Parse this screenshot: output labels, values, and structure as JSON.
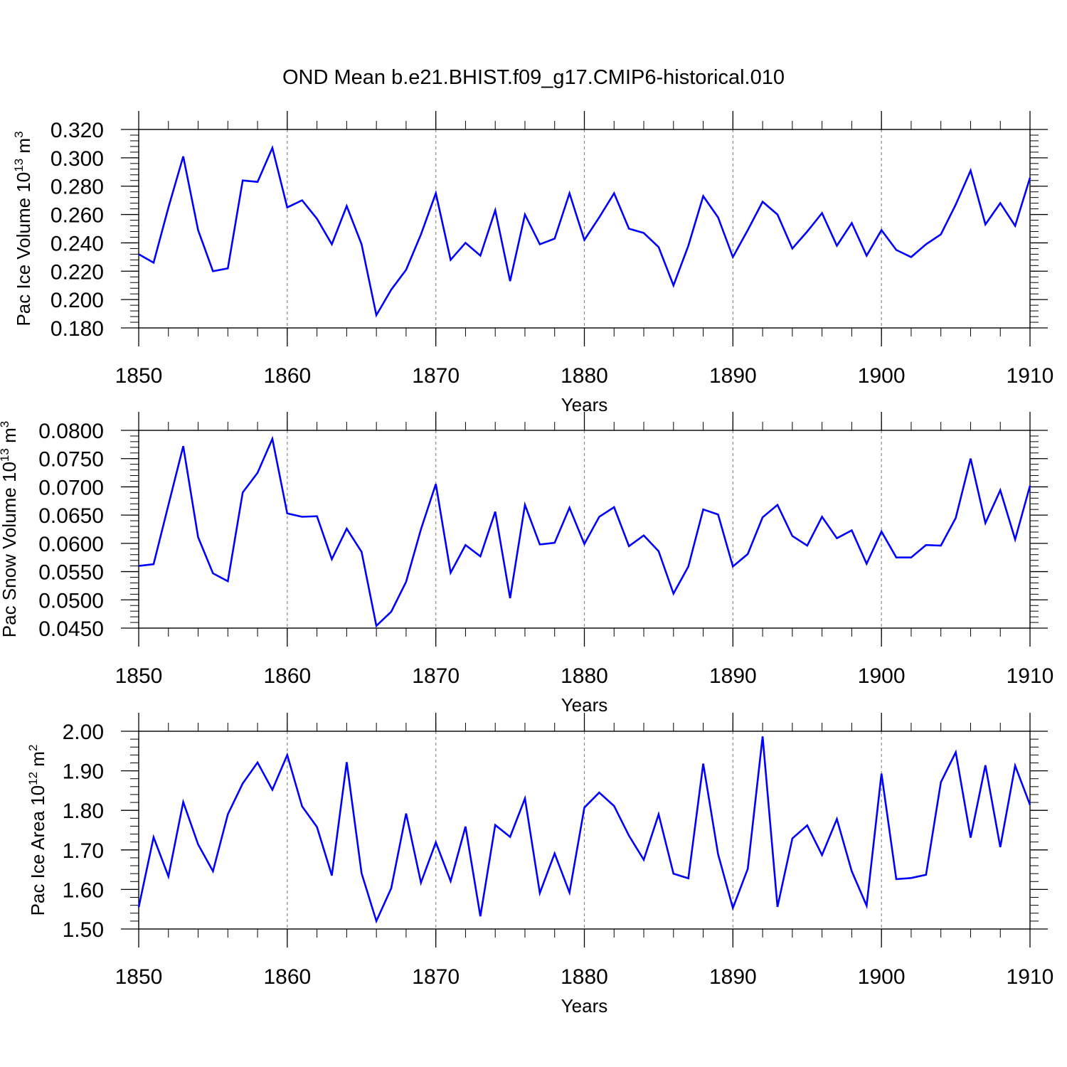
{
  "title": "OND Mean b.e21.BHIST.f09_g17.CMIP6-historical.010",
  "line_color": "#0000ff",
  "gridline_color": "#888888",
  "chart_data": [
    {
      "type": "line",
      "ylabel": "Pac Ice Volume 10",
      "ylabel_exp": "13",
      "ylabel_unit": "m",
      "ylabel_unit_exp": "3",
      "xlabel": "Years",
      "xlim": [
        1850,
        1910
      ],
      "ylim": [
        0.18,
        0.32
      ],
      "yticks": [
        0.18,
        0.2,
        0.22,
        0.24,
        0.26,
        0.28,
        0.3,
        0.32
      ],
      "ytick_labels": [
        "0.180",
        "0.200",
        "0.220",
        "0.240",
        "0.260",
        "0.280",
        "0.300",
        "0.320"
      ],
      "yminor_step": 0.004,
      "xticks": [
        1850,
        1860,
        1870,
        1880,
        1890,
        1900,
        1910
      ],
      "xtick_labels": [
        "1850",
        "1860",
        "1870",
        "1880",
        "1890",
        "1900",
        "1910"
      ],
      "x": [
        1850,
        1851,
        1852,
        1853,
        1854,
        1855,
        1856,
        1857,
        1858,
        1859,
        1860,
        1861,
        1862,
        1863,
        1864,
        1865,
        1866,
        1867,
        1868,
        1869,
        1870,
        1871,
        1872,
        1873,
        1874,
        1875,
        1876,
        1877,
        1878,
        1879,
        1880,
        1881,
        1882,
        1883,
        1884,
        1885,
        1886,
        1887,
        1888,
        1889,
        1890,
        1891,
        1892,
        1893,
        1894,
        1895,
        1896,
        1897,
        1898,
        1899,
        1900,
        1901,
        1902,
        1903,
        1904,
        1905,
        1906,
        1907,
        1908,
        1909,
        1910
      ],
      "values": [
        0.232,
        0.226,
        0.265,
        0.301,
        0.249,
        0.22,
        0.222,
        0.284,
        0.283,
        0.307,
        0.265,
        0.27,
        0.257,
        0.239,
        0.266,
        0.239,
        0.189,
        0.207,
        0.221,
        0.246,
        0.275,
        0.228,
        0.24,
        0.231,
        0.263,
        0.213,
        0.26,
        0.239,
        0.243,
        0.275,
        0.242,
        0.258,
        0.275,
        0.25,
        0.247,
        0.237,
        0.21,
        0.238,
        0.273,
        0.258,
        0.23,
        0.249,
        0.269,
        0.26,
        0.236,
        0.248,
        0.261,
        0.238,
        0.254,
        0.231,
        0.249,
        0.235,
        0.23,
        0.239,
        0.246,
        0.267,
        0.291,
        0.253,
        0.268,
        0.252,
        0.286
      ]
    },
    {
      "type": "line",
      "ylabel": "Pac Snow Volume 10",
      "ylabel_exp": "13",
      "ylabel_unit": "m",
      "ylabel_unit_exp": "3",
      "xlabel": "Years",
      "xlim": [
        1850,
        1910
      ],
      "ylim": [
        0.045,
        0.08
      ],
      "yticks": [
        0.045,
        0.05,
        0.055,
        0.06,
        0.065,
        0.07,
        0.075,
        0.08
      ],
      "ytick_labels": [
        "0.0450",
        "0.0500",
        "0.0550",
        "0.0600",
        "0.0650",
        "0.0700",
        "0.0750",
        "0.0800"
      ],
      "yminor_step": 0.001,
      "xticks": [
        1850,
        1860,
        1870,
        1880,
        1890,
        1900,
        1910
      ],
      "xtick_labels": [
        "1850",
        "1860",
        "1870",
        "1880",
        "1890",
        "1900",
        "1910"
      ],
      "x": [
        1850,
        1851,
        1852,
        1853,
        1854,
        1855,
        1856,
        1857,
        1858,
        1859,
        1860,
        1861,
        1862,
        1863,
        1864,
        1865,
        1866,
        1867,
        1868,
        1869,
        1870,
        1871,
        1872,
        1873,
        1874,
        1875,
        1876,
        1877,
        1878,
        1879,
        1880,
        1881,
        1882,
        1883,
        1884,
        1885,
        1886,
        1887,
        1888,
        1889,
        1890,
        1891,
        1892,
        1893,
        1894,
        1895,
        1896,
        1897,
        1898,
        1899,
        1900,
        1901,
        1902,
        1903,
        1904,
        1905,
        1906,
        1907,
        1908,
        1909,
        1910
      ],
      "values": [
        0.056,
        0.0563,
        0.0668,
        0.0772,
        0.0611,
        0.0547,
        0.0533,
        0.069,
        0.0725,
        0.0785,
        0.0653,
        0.0647,
        0.0648,
        0.0572,
        0.0626,
        0.0585,
        0.0454,
        0.0479,
        0.0532,
        0.0625,
        0.0705,
        0.0548,
        0.0597,
        0.0577,
        0.0656,
        0.0503,
        0.0668,
        0.0598,
        0.0601,
        0.0663,
        0.0599,
        0.0647,
        0.0664,
        0.0595,
        0.0614,
        0.0586,
        0.0511,
        0.0559,
        0.066,
        0.0651,
        0.0559,
        0.0581,
        0.0646,
        0.0668,
        0.0613,
        0.0596,
        0.0647,
        0.0609,
        0.0623,
        0.0564,
        0.0621,
        0.0575,
        0.0575,
        0.0597,
        0.0596,
        0.0645,
        0.075,
        0.0636,
        0.0694,
        0.0607,
        0.0702
      ]
    },
    {
      "type": "line",
      "ylabel": "Pac Ice Area 10",
      "ylabel_exp": "12",
      "ylabel_unit": "m",
      "ylabel_unit_exp": "2",
      "xlabel": "Years",
      "xlim": [
        1850,
        1910
      ],
      "ylim": [
        1.5,
        2.0
      ],
      "yticks": [
        1.5,
        1.6,
        1.7,
        1.8,
        1.9,
        2.0
      ],
      "ytick_labels": [
        "1.50",
        "1.60",
        "1.70",
        "1.80",
        "1.90",
        "2.00"
      ],
      "yminor_step": 0.02,
      "xticks": [
        1850,
        1860,
        1870,
        1880,
        1890,
        1900,
        1910
      ],
      "xtick_labels": [
        "1850",
        "1860",
        "1870",
        "1880",
        "1890",
        "1900",
        "1910"
      ],
      "x": [
        1850,
        1851,
        1852,
        1853,
        1854,
        1855,
        1856,
        1857,
        1858,
        1859,
        1860,
        1861,
        1862,
        1863,
        1864,
        1865,
        1866,
        1867,
        1868,
        1869,
        1870,
        1871,
        1872,
        1873,
        1874,
        1875,
        1876,
        1877,
        1878,
        1879,
        1880,
        1881,
        1882,
        1883,
        1884,
        1885,
        1886,
        1887,
        1888,
        1889,
        1890,
        1891,
        1892,
        1893,
        1894,
        1895,
        1896,
        1897,
        1898,
        1899,
        1900,
        1901,
        1902,
        1903,
        1904,
        1905,
        1906,
        1907,
        1908,
        1909,
        1910
      ],
      "values": [
        1.555,
        1.732,
        1.633,
        1.821,
        1.714,
        1.646,
        1.79,
        1.868,
        1.921,
        1.852,
        1.94,
        1.81,
        1.758,
        1.635,
        1.922,
        1.641,
        1.52,
        1.603,
        1.792,
        1.617,
        1.719,
        1.621,
        1.759,
        1.532,
        1.763,
        1.733,
        1.83,
        1.591,
        1.691,
        1.592,
        1.807,
        1.845,
        1.811,
        1.736,
        1.675,
        1.79,
        1.64,
        1.628,
        1.918,
        1.689,
        1.553,
        1.652,
        1.987,
        1.556,
        1.729,
        1.762,
        1.687,
        1.778,
        1.646,
        1.559,
        1.893,
        1.626,
        1.629,
        1.637,
        1.871,
        1.947,
        1.731,
        1.914,
        1.707,
        1.913,
        1.814
      ]
    }
  ]
}
